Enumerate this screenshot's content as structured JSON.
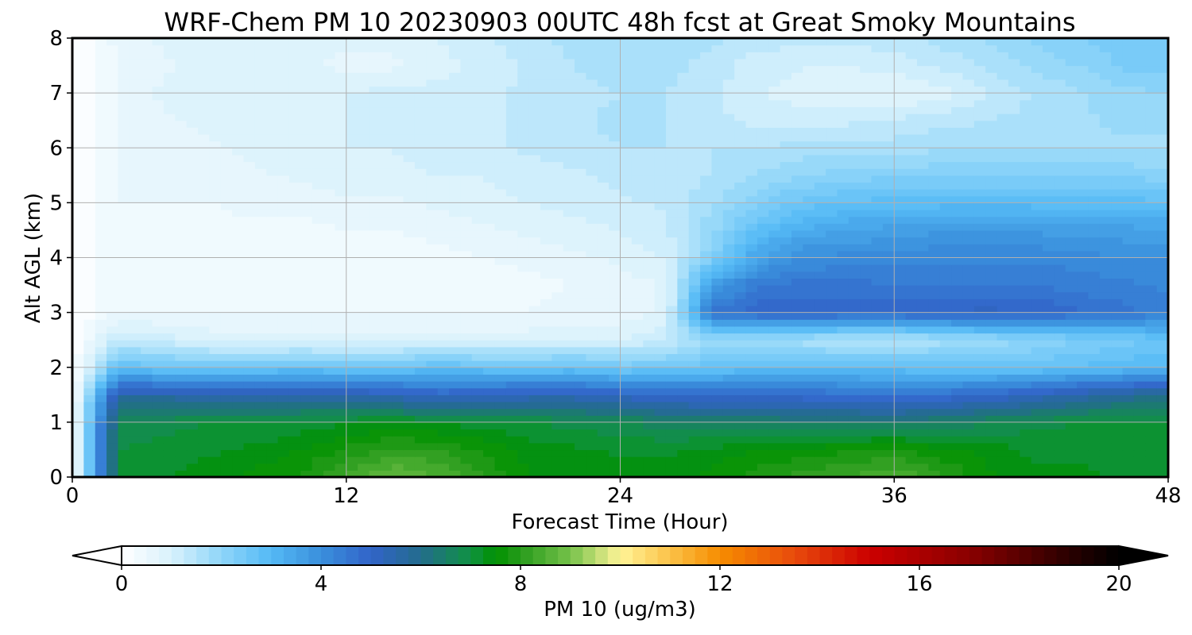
{
  "chart_data": {
    "type": "heatmap",
    "subtype": "time-height filled contour",
    "title": "WRF-Chem PM 10  20230903 00UTC 48h fcst at Great Smoky Mountains",
    "xlabel": "Forecast Time (Hour)",
    "ylabel": "Alt AGL (km)",
    "xlim": [
      0,
      48
    ],
    "ylim": [
      0,
      8
    ],
    "x_ticks": [
      0,
      12,
      24,
      36,
      48
    ],
    "y_ticks": [
      0,
      1,
      2,
      3,
      4,
      5,
      6,
      7,
      8
    ],
    "grid": true,
    "x": [
      0,
      2,
      4,
      6,
      8,
      10,
      12,
      14,
      16,
      18,
      20,
      22,
      24,
      26,
      28,
      30,
      32,
      34,
      36,
      38,
      40,
      42,
      44,
      46,
      48
    ],
    "y": [
      0,
      0.5,
      1,
      1.5,
      2,
      2.5,
      3,
      3.5,
      4,
      4.5,
      5,
      5.5,
      6,
      6.5,
      7,
      7.5,
      8
    ],
    "z": [
      [
        0,
        7.0,
        7.2,
        7.4,
        7.6,
        7.8,
        8.3,
        8.8,
        8.5,
        8.0,
        7.5,
        7.4,
        7.4,
        7.4,
        7.6,
        7.9,
        8.1,
        8.3,
        8.5,
        8.1,
        7.6,
        7.3,
        7.3,
        7.2,
        7.2
      ],
      [
        0,
        7.0,
        7.1,
        7.2,
        7.3,
        7.5,
        7.8,
        8.1,
        8.0,
        7.7,
        7.4,
        7.3,
        7.2,
        7.2,
        7.3,
        7.5,
        7.6,
        7.7,
        7.8,
        7.6,
        7.4,
        7.2,
        7.2,
        7.1,
        7.1
      ],
      [
        0,
        6.8,
        6.9,
        7.0,
        7.0,
        7.1,
        7.2,
        7.3,
        7.2,
        7.1,
        7.0,
        6.9,
        6.8,
        6.6,
        6.6,
        6.5,
        6.4,
        6.4,
        6.4,
        6.5,
        6.7,
        6.9,
        7.0,
        7.1,
        7.1
      ],
      [
        0,
        5.6,
        5.6,
        5.5,
        5.5,
        5.5,
        5.4,
        5.3,
        5.0,
        5.1,
        5.3,
        5.3,
        5.1,
        4.9,
        4.8,
        4.8,
        4.8,
        4.7,
        4.6,
        4.7,
        4.9,
        5.2,
        5.5,
        5.8,
        6.0
      ],
      [
        0,
        2.8,
        2.6,
        2.5,
        2.6,
        2.7,
        2.6,
        2.6,
        2.8,
        2.7,
        2.6,
        2.7,
        2.4,
        2.5,
        2.7,
        2.8,
        2.8,
        2.8,
        2.8,
        2.7,
        2.6,
        2.6,
        2.8,
        2.9,
        3.0
      ],
      [
        0,
        1.3,
        1.1,
        0.9,
        0.8,
        0.8,
        0.8,
        0.8,
        0.8,
        0.8,
        0.9,
        0.9,
        1.0,
        1.2,
        1.8,
        1.7,
        1.6,
        1.4,
        1.4,
        1.6,
        1.8,
        2.0,
        2.2,
        2.4,
        2.6
      ],
      [
        0,
        0.5,
        0.5,
        0.5,
        0.5,
        0.5,
        0.5,
        0.5,
        0.5,
        0.5,
        0.5,
        0.6,
        0.6,
        0.8,
        4.6,
        4.9,
        5.0,
        4.9,
        4.9,
        5.0,
        5.1,
        5.0,
        4.8,
        4.6,
        4.4
      ],
      [
        0,
        0.4,
        0.3,
        0.3,
        0.3,
        0.3,
        0.3,
        0.3,
        0.3,
        0.3,
        0.4,
        0.5,
        0.6,
        0.8,
        3.6,
        4.5,
        4.6,
        4.6,
        4.5,
        4.5,
        4.5,
        4.5,
        4.4,
        4.3,
        4.2
      ],
      [
        0,
        0.4,
        0.3,
        0.3,
        0.3,
        0.3,
        0.3,
        0.3,
        0.4,
        0.5,
        0.6,
        0.7,
        0.8,
        1.0,
        2.2,
        3.5,
        4.0,
        4.1,
        4.1,
        4.2,
        4.2,
        4.2,
        4.1,
        4.0,
        4.0
      ],
      [
        0,
        0.5,
        0.4,
        0.4,
        0.4,
        0.4,
        0.5,
        0.5,
        0.6,
        0.7,
        0.8,
        0.9,
        1.0,
        1.2,
        1.9,
        2.8,
        3.3,
        3.5,
        3.6,
        3.7,
        3.7,
        3.7,
        3.6,
        3.6,
        3.5
      ],
      [
        0,
        0.5,
        0.5,
        0.5,
        0.6,
        0.6,
        0.7,
        0.7,
        0.8,
        0.9,
        1.0,
        1.1,
        1.2,
        1.3,
        1.7,
        2.2,
        2.6,
        2.8,
        2.9,
        2.9,
        2.9,
        2.9,
        2.9,
        2.9,
        2.8
      ],
      [
        0,
        0.5,
        0.6,
        0.6,
        0.7,
        0.8,
        0.9,
        0.9,
        1.0,
        1.0,
        1.1,
        1.2,
        1.3,
        1.4,
        1.5,
        1.8,
        2.0,
        2.1,
        2.2,
        2.2,
        2.2,
        2.2,
        2.2,
        2.2,
        2.1
      ],
      [
        0,
        0.5,
        0.6,
        0.7,
        0.8,
        0.9,
        1.0,
        1.0,
        1.1,
        1.2,
        1.3,
        1.4,
        1.5,
        1.5,
        1.5,
        1.5,
        1.6,
        1.6,
        1.6,
        1.7,
        1.7,
        1.7,
        1.7,
        1.7,
        1.7
      ],
      [
        0,
        0.5,
        0.7,
        0.8,
        0.9,
        0.9,
        1.0,
        1.0,
        1.1,
        1.2,
        1.3,
        1.4,
        1.6,
        1.5,
        1.3,
        1.2,
        1.1,
        1.2,
        1.3,
        1.4,
        1.5,
        1.6,
        1.7,
        1.8,
        1.8
      ],
      [
        0,
        0.5,
        0.8,
        0.9,
        0.9,
        0.9,
        1.0,
        1.1,
        1.1,
        1.2,
        1.3,
        1.4,
        1.5,
        1.5,
        1.3,
        1.0,
        0.9,
        0.8,
        0.7,
        0.9,
        1.2,
        1.5,
        1.7,
        1.9,
        2.0
      ],
      [
        0,
        0.5,
        0.7,
        0.8,
        0.8,
        0.8,
        0.7,
        0.7,
        0.9,
        1.1,
        1.3,
        1.5,
        1.6,
        1.6,
        1.4,
        1.1,
        1.0,
        1.0,
        1.1,
        1.3,
        1.5,
        1.8,
        2.0,
        2.3,
        2.3
      ],
      [
        0,
        0.6,
        0.8,
        0.9,
        0.9,
        0.8,
        0.8,
        0.8,
        1.0,
        1.2,
        1.4,
        1.6,
        1.7,
        1.7,
        1.6,
        1.4,
        1.3,
        1.3,
        1.4,
        1.6,
        1.8,
        2.0,
        2.2,
        2.4,
        2.5
      ]
    ],
    "colorbar": {
      "label": "PM 10  (ug/m3)",
      "min": 0,
      "max": 20,
      "ticks": [
        0,
        4,
        8,
        12,
        16,
        20
      ],
      "extend": "both",
      "levels": 80,
      "orientation": "horizontal",
      "placement": "bottom",
      "color_stops": [
        {
          "value": 0,
          "color": "#ffffff"
        },
        {
          "value": 1,
          "color": "#d8f1fc"
        },
        {
          "value": 2,
          "color": "#8fd6f9"
        },
        {
          "value": 3,
          "color": "#54b9f5"
        },
        {
          "value": 4,
          "color": "#3a8fdc"
        },
        {
          "value": 5,
          "color": "#3264c8"
        },
        {
          "value": 6,
          "color": "#236c8c"
        },
        {
          "value": 7,
          "color": "#109243"
        },
        {
          "value": 7.5,
          "color": "#009100"
        },
        {
          "value": 8,
          "color": "#289b1c"
        },
        {
          "value": 9,
          "color": "#76c24a"
        },
        {
          "value": 10,
          "color": "#fff498"
        },
        {
          "value": 11,
          "color": "#fbc248"
        },
        {
          "value": 12,
          "color": "#f68c00"
        },
        {
          "value": 13.5,
          "color": "#e84a0c"
        },
        {
          "value": 15,
          "color": "#cc0000"
        },
        {
          "value": 17,
          "color": "#8a0000"
        },
        {
          "value": 19,
          "color": "#2a0000"
        },
        {
          "value": 20,
          "color": "#000000"
        }
      ]
    },
    "axis_color": "#000000",
    "grid_color": "#b0b0b0"
  }
}
